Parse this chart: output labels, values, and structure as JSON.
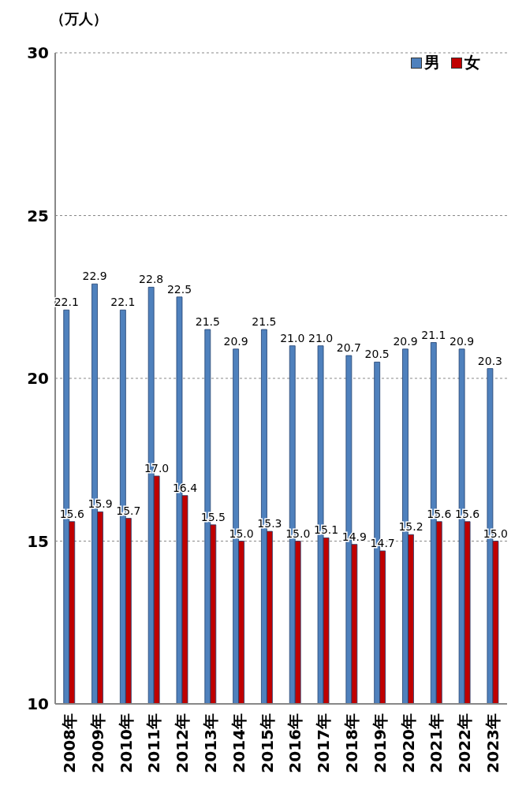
{
  "chart_data": {
    "type": "bar",
    "ylabel": "（万人）",
    "categories": [
      "2008年",
      "2009年",
      "2010年",
      "2011年",
      "2012年",
      "2013年",
      "2014年",
      "2015年",
      "2016年",
      "2017年",
      "2018年",
      "2019年",
      "2020年",
      "2021年",
      "2022年",
      "2023年"
    ],
    "series": [
      {
        "name": "男",
        "color": "#4f81bd",
        "values": [
          22.1,
          22.9,
          22.1,
          22.8,
          22.5,
          21.5,
          20.9,
          21.5,
          21.0,
          21.0,
          20.7,
          20.5,
          20.9,
          21.1,
          20.9,
          20.3
        ],
        "value_labels": [
          "22.1",
          "22.9",
          "22.1",
          "22.8",
          "22.5",
          "21.5",
          "20.9",
          "21.5",
          "21.0",
          "21.0",
          "20.7",
          "20.5",
          "20.9",
          "21.1",
          "20.9",
          "20.3"
        ]
      },
      {
        "name": "女",
        "color": "#c00000",
        "values": [
          15.6,
          15.9,
          15.7,
          17.0,
          16.4,
          15.5,
          15.0,
          15.3,
          15.0,
          15.1,
          14.9,
          14.7,
          15.2,
          15.6,
          15.6,
          15.0
        ],
        "value_labels": [
          "15.6",
          "15.9",
          "15.7",
          "17.0",
          "16.4",
          "15.5",
          "15.0",
          "15.3",
          "15.0",
          "15.1",
          "14.9",
          "14.7",
          "15.2",
          "15.6",
          "15.6",
          "15.0"
        ]
      }
    ],
    "ylim": [
      10,
      30
    ],
    "yticks": [
      10,
      15,
      20,
      25,
      30
    ],
    "grid": "y",
    "legend": "top right"
  }
}
